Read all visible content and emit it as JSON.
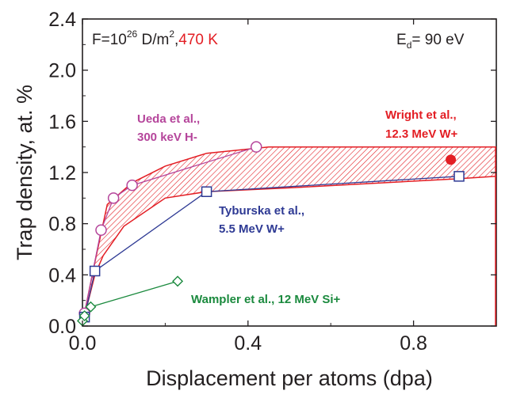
{
  "chart_data": {
    "type": "line",
    "xlabel": "Displacement per atoms (dpa)",
    "ylabel": "Trap density, at. %",
    "xlim": [
      0,
      1.0
    ],
    "ylim": [
      0,
      2.4
    ],
    "x_ticks": [
      "0.0",
      "0.4",
      "0.8"
    ],
    "x_tick_values": [
      0,
      0.4,
      0.8
    ],
    "y_ticks": [
      "0.0",
      "0.4",
      "0.8",
      "1.2",
      "1.6",
      "2.0",
      "2.4"
    ],
    "y_tick_values": [
      0,
      0.4,
      0.8,
      1.2,
      1.6,
      2.0,
      2.4
    ],
    "grid": false,
    "conditions": {
      "fluence_prefix": "F=10",
      "fluence_exponent": "26",
      "fluence_suffix": " D/m",
      "fluence_unit_exponent": "2",
      "separator": ",",
      "temperature": "470 K",
      "ed_symbol": "E",
      "ed_subscript": "d",
      "ed_value": "= 90 eV"
    },
    "band": {
      "upper": [
        [
          0.005,
          0.1
        ],
        [
          0.03,
          0.5
        ],
        [
          0.06,
          0.95
        ],
        [
          0.12,
          1.12
        ],
        [
          0.2,
          1.25
        ],
        [
          0.3,
          1.35
        ],
        [
          0.45,
          1.4
        ],
        [
          1.0,
          1.4
        ]
      ],
      "lower": [
        [
          0.005,
          0.08
        ],
        [
          0.03,
          0.4
        ],
        [
          0.05,
          0.55
        ],
        [
          0.1,
          0.78
        ],
        [
          0.2,
          1.0
        ],
        [
          0.3,
          1.05
        ],
        [
          0.5,
          1.08
        ],
        [
          0.9,
          1.15
        ],
        [
          1.0,
          1.17
        ]
      ],
      "right_edge": [
        1.0,
        0.0,
        1.4
      ],
      "color": "#e31e24"
    },
    "series": [
      {
        "key": "ueda",
        "marker": "circle-open",
        "color": "#b5459b",
        "x": [
          0.005,
          0.045,
          0.075,
          0.12,
          0.42
        ],
        "y": [
          0.1,
          0.75,
          1.0,
          1.1,
          1.4
        ],
        "annotation": [
          "Ueda et al.,",
          "300 keV H-"
        ]
      },
      {
        "key": "tyburska",
        "marker": "square-open",
        "color": "#2e3a94",
        "x": [
          0.005,
          0.03,
          0.3,
          0.91
        ],
        "y": [
          0.07,
          0.43,
          1.05,
          1.17
        ],
        "annotation": [
          "Tyburska et al.,",
          "5.5 MeV W+"
        ]
      },
      {
        "key": "wampler",
        "marker": "diamond-open",
        "color": "#1b8a3e",
        "x": [
          0.0,
          0.005,
          0.02,
          0.23
        ],
        "y": [
          0.04,
          0.08,
          0.15,
          0.35
        ],
        "annotation": [
          "Wampler et al., 12 MeV Si+"
        ]
      },
      {
        "key": "wright",
        "marker": "circle-filled",
        "color": "#e31e24",
        "x": [
          0.89
        ],
        "y": [
          1.3
        ],
        "annotation": [
          "Wright et al.,",
          "12.3 MeV W+"
        ]
      }
    ]
  }
}
